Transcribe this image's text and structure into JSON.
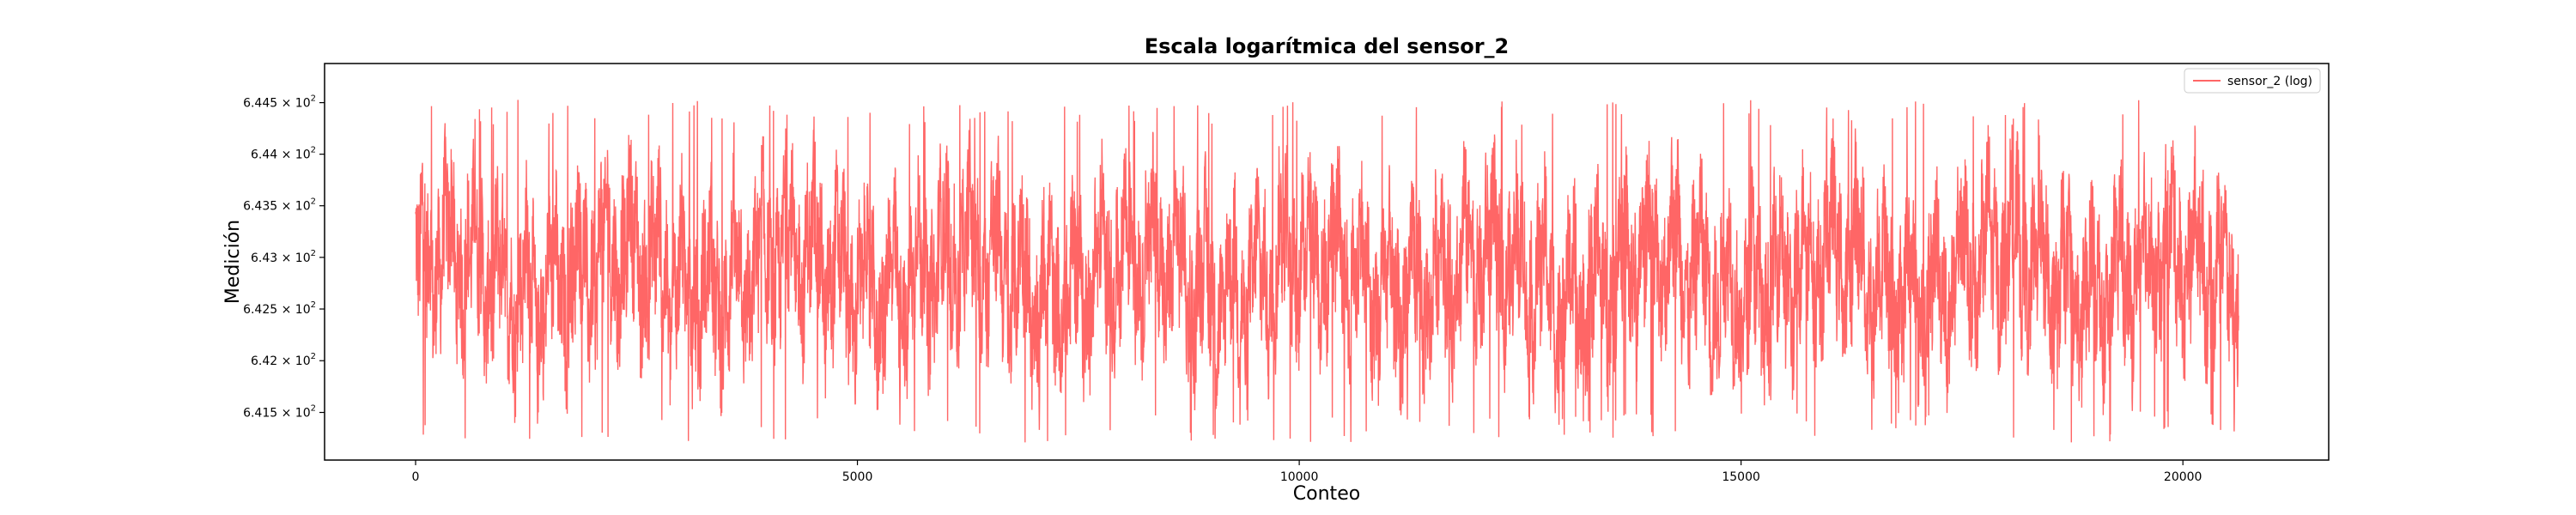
{
  "chart_data": {
    "type": "line",
    "title": "Escala logarítmica del sensor_2",
    "xlabel": "Conteo",
    "ylabel": "Medición",
    "y_scale": "log",
    "xlim": [
      -1030,
      21650
    ],
    "ylim": [
      641.04,
      644.88
    ],
    "grid": false,
    "legend_position": "top-right",
    "x_ticks": [
      {
        "value": 0,
        "label": "0"
      },
      {
        "value": 5000,
        "label": "5000"
      },
      {
        "value": 10000,
        "label": "10000"
      },
      {
        "value": 15000,
        "label": "15000"
      },
      {
        "value": 20000,
        "label": "20000"
      }
    ],
    "y_ticks": [
      {
        "value": 641.5,
        "mantissa": "6.415",
        "base": "10",
        "exponent": "2"
      },
      {
        "value": 642.0,
        "mantissa": "6.42",
        "base": "10",
        "exponent": "2"
      },
      {
        "value": 642.5,
        "mantissa": "6.425",
        "base": "10",
        "exponent": "2"
      },
      {
        "value": 643.0,
        "mantissa": "6.43",
        "base": "10",
        "exponent": "2"
      },
      {
        "value": 643.5,
        "mantissa": "6.435",
        "base": "10",
        "exponent": "2"
      },
      {
        "value": 644.0,
        "mantissa": "6.44",
        "base": "10",
        "exponent": "2"
      },
      {
        "value": 644.5,
        "mantissa": "6.445",
        "base": "10",
        "exponent": "2"
      }
    ],
    "series": [
      {
        "name": "sensor_2 (log)",
        "color": "#ff6666",
        "x_start": 0,
        "x_end": 20631,
        "y_min": 641.21,
        "y_max": 644.53,
        "y_typical_range": [
          642.0,
          643.7
        ],
        "approx_points": 20631
      }
    ]
  }
}
